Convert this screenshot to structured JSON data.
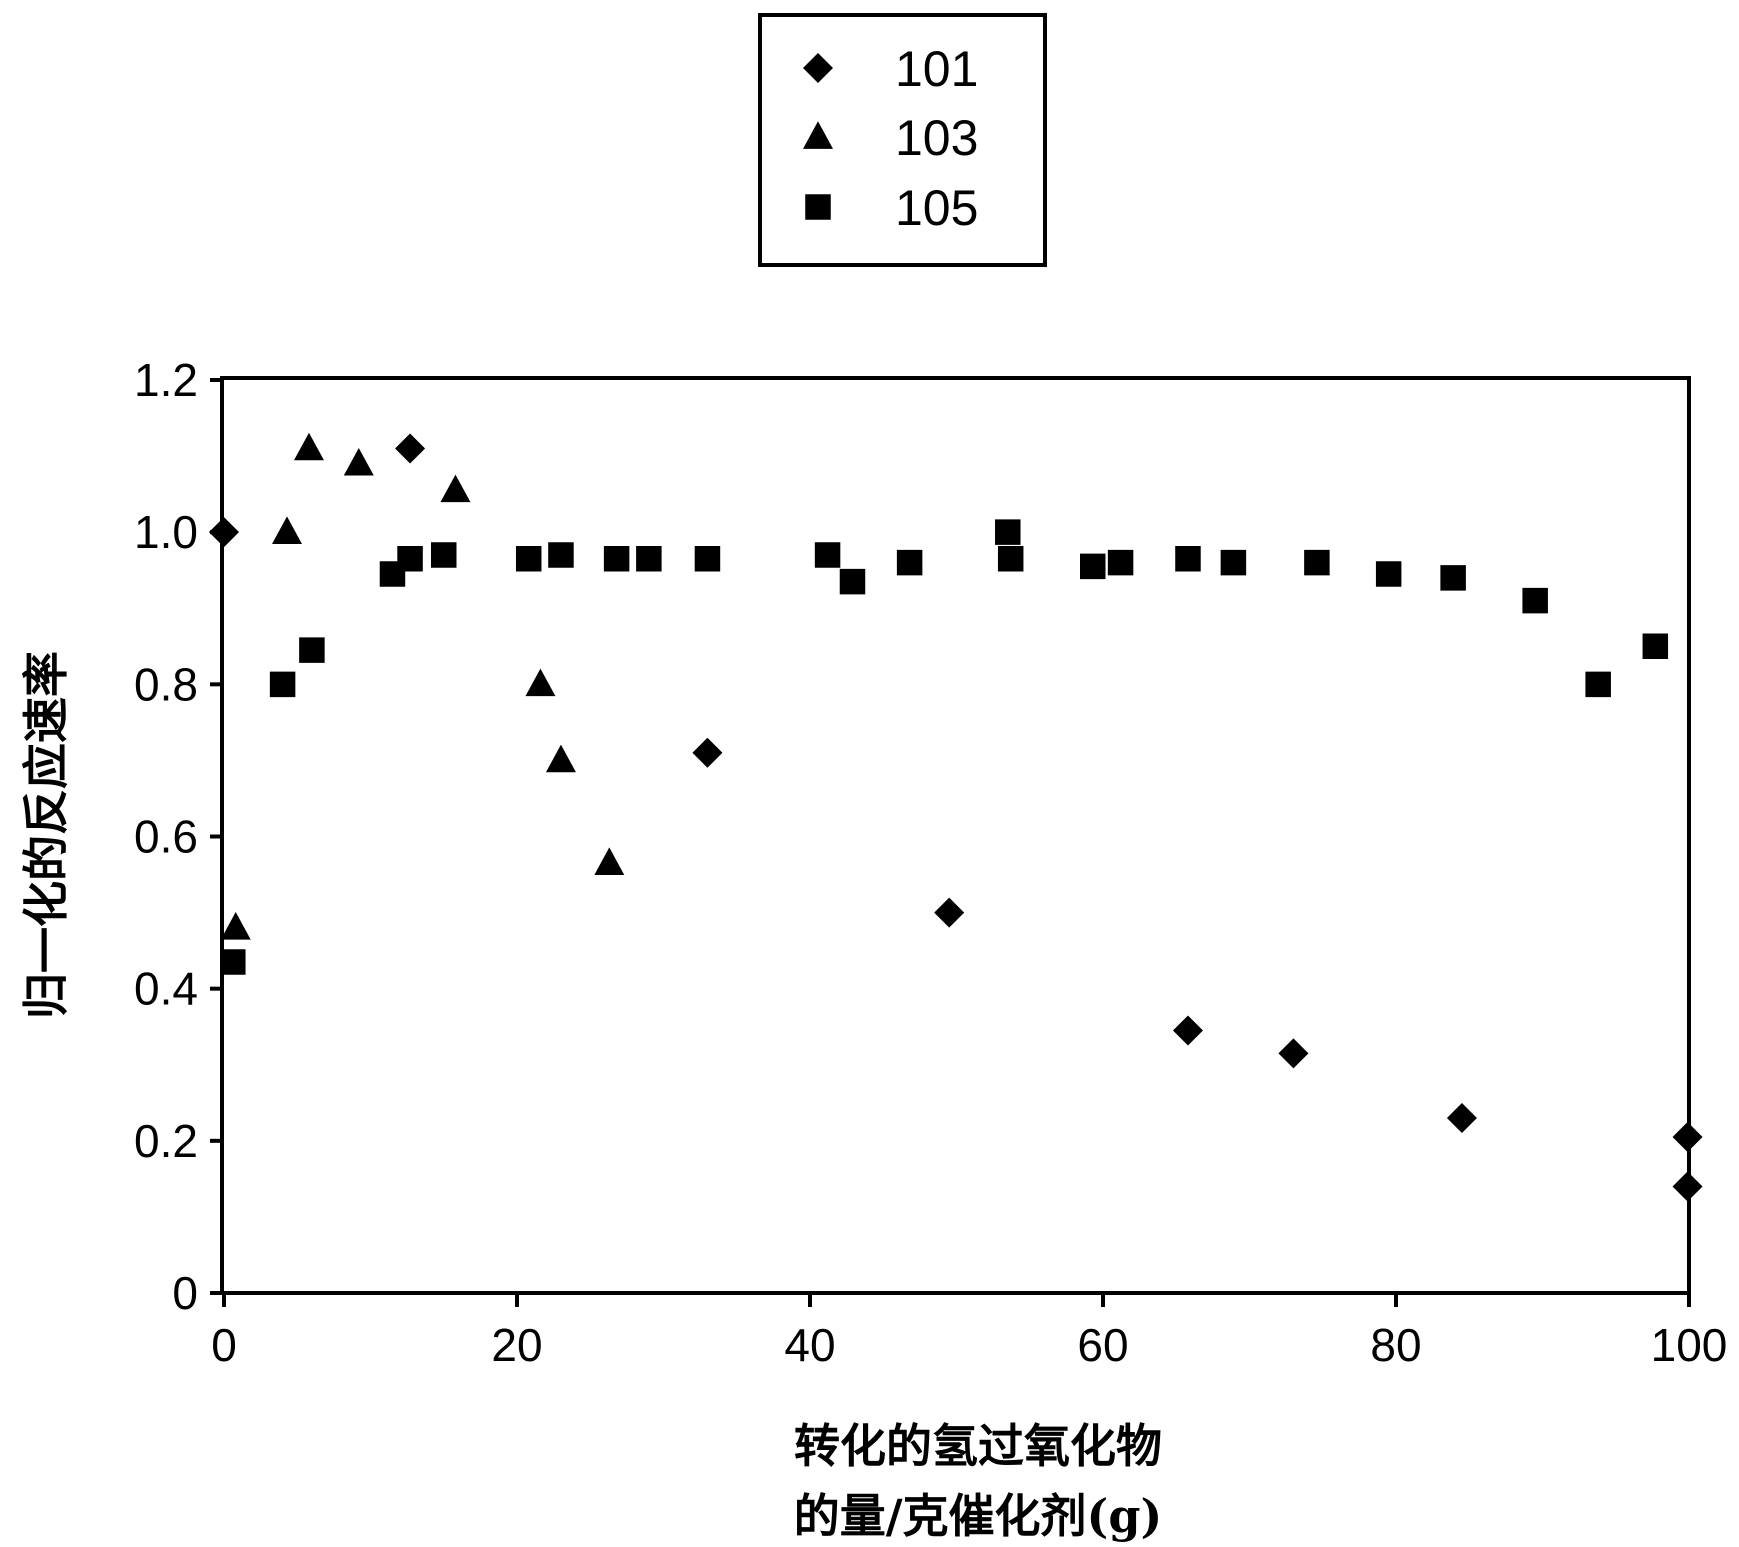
{
  "chart_data": {
    "type": "scatter",
    "title": "",
    "xlabel": [
      "转化的氢过氧化物",
      "的量/克催化剂(g)"
    ],
    "ylabel": "归一化的反应速率",
    "xlim": [
      0,
      100
    ],
    "ylim": [
      0,
      1.2
    ],
    "x_ticks": [
      {
        "value": 0,
        "label": "0"
      },
      {
        "value": 20,
        "label": "20"
      },
      {
        "value": 40,
        "label": "40"
      },
      {
        "value": 60,
        "label": "60"
      },
      {
        "value": 80,
        "label": "80"
      },
      {
        "value": 100,
        "label": "100"
      }
    ],
    "y_ticks": [
      {
        "value": 0,
        "label": "0"
      },
      {
        "value": 0.2,
        "label": "0.2"
      },
      {
        "value": 0.4,
        "label": "0.4"
      },
      {
        "value": 0.6,
        "label": "0.6"
      },
      {
        "value": 0.8,
        "label": "0.8"
      },
      {
        "value": 1.0,
        "label": "1.0"
      },
      {
        "value": 1.2,
        "label": "1.2"
      }
    ],
    "grid": false,
    "legend_position": "top-center",
    "series": [
      {
        "name": "101",
        "marker": "diamond",
        "color": "#000000",
        "points": [
          [
            0.0,
            1.0
          ],
          [
            12.7,
            1.11
          ],
          [
            33.0,
            0.71
          ],
          [
            49.5,
            0.5
          ],
          [
            65.8,
            0.345
          ],
          [
            73.0,
            0.315
          ],
          [
            84.5,
            0.23
          ],
          [
            99.9,
            0.205
          ],
          [
            99.9,
            0.14
          ]
        ]
      },
      {
        "name": "103",
        "marker": "triangle",
        "color": "#000000",
        "points": [
          [
            0.8,
            0.48
          ],
          [
            4.3,
            1.0
          ],
          [
            5.8,
            1.11
          ],
          [
            9.2,
            1.09
          ],
          [
            15.8,
            1.055
          ],
          [
            21.6,
            0.8
          ],
          [
            23.0,
            0.7
          ],
          [
            26.3,
            0.565
          ]
        ]
      },
      {
        "name": "105",
        "marker": "square",
        "color": "#000000",
        "points": [
          [
            0.6,
            0.435
          ],
          [
            4.0,
            0.8
          ],
          [
            6.0,
            0.845
          ],
          [
            11.5,
            0.945
          ],
          [
            12.7,
            0.965
          ],
          [
            15.0,
            0.97
          ],
          [
            20.8,
            0.965
          ],
          [
            23.0,
            0.97
          ],
          [
            26.8,
            0.965
          ],
          [
            29.0,
            0.965
          ],
          [
            33.0,
            0.965
          ],
          [
            41.2,
            0.97
          ],
          [
            42.9,
            0.935
          ],
          [
            46.8,
            0.96
          ],
          [
            53.5,
            1.0
          ],
          [
            53.7,
            0.965
          ],
          [
            59.3,
            0.955
          ],
          [
            61.2,
            0.96
          ],
          [
            65.8,
            0.965
          ],
          [
            68.9,
            0.96
          ],
          [
            74.6,
            0.96
          ],
          [
            79.5,
            0.945
          ],
          [
            83.9,
            0.94
          ],
          [
            89.5,
            0.91
          ],
          [
            93.8,
            0.8
          ],
          [
            97.7,
            0.85
          ]
        ]
      }
    ]
  }
}
